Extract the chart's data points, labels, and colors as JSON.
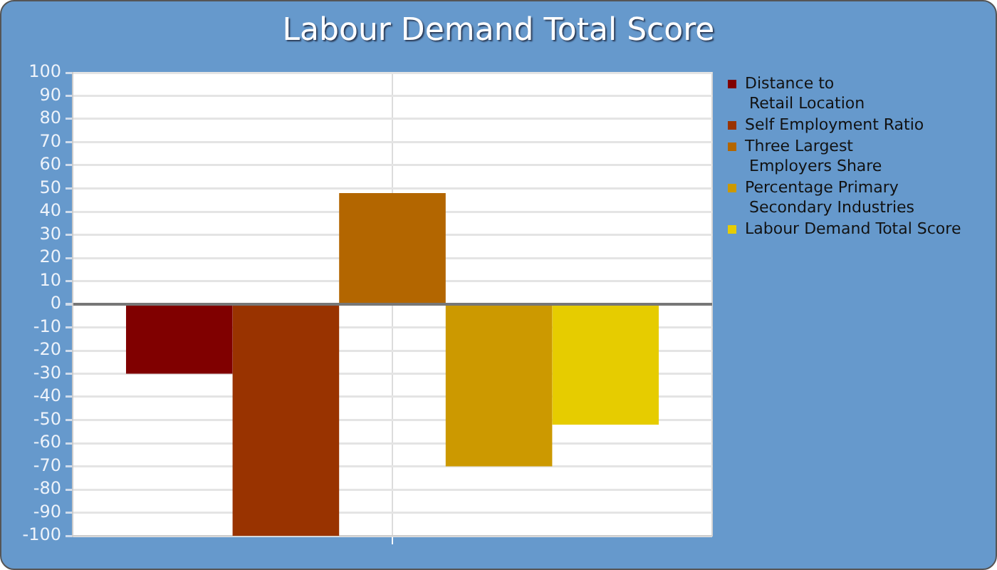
{
  "chart_data": {
    "type": "bar",
    "title": "Labour Demand Total Score",
    "categories": [
      null
    ],
    "series": [
      {
        "name": "Distance to Retail Location",
        "color": "#800000",
        "values": [
          -30
        ]
      },
      {
        "name": "Self Employment Ratio",
        "color": "#993300",
        "values": [
          -100
        ]
      },
      {
        "name": "Three Largest Employers Share",
        "color": "#b36600",
        "values": [
          48
        ]
      },
      {
        "name": "Percentage Primary Secondary Industries",
        "color": "#cc9900",
        "values": [
          -70
        ]
      },
      {
        "name": "Labour Demand Total Score",
        "color": "#e6cc00",
        "values": [
          -52
        ]
      }
    ],
    "ylim": [
      -100,
      100
    ],
    "yticks": [
      -100,
      -90,
      -80,
      -70,
      -60,
      -50,
      -40,
      -30,
      -20,
      -10,
      0,
      10,
      20,
      30,
      40,
      50,
      60,
      70,
      80,
      90,
      100
    ],
    "grid": true,
    "legend": "right",
    "tick_labels": "y"
  }
}
